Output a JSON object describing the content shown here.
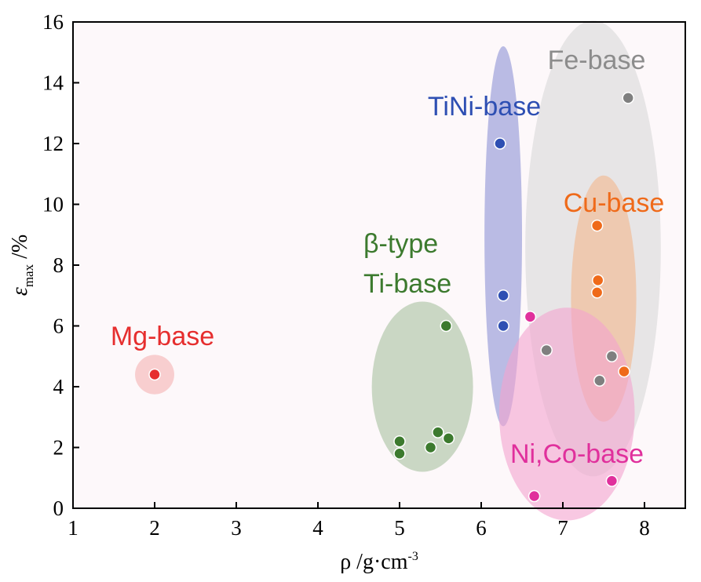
{
  "chart_data": {
    "type": "scatter",
    "xlim": [
      1,
      8.5
    ],
    "ylim": [
      0,
      16
    ],
    "x_ticks": [
      1,
      2,
      3,
      4,
      5,
      6,
      7,
      8
    ],
    "y_ticks": [
      0,
      2,
      4,
      6,
      8,
      10,
      12,
      14,
      16
    ],
    "xlabel": {
      "main": "ρ /g·cm",
      "sup": "-3"
    },
    "ylabel": {
      "main": "ε",
      "sub": "max",
      "unit": " /%"
    },
    "grid": false,
    "plot_background": "#fdf8fa",
    "groups": [
      {
        "name": "Fe-base",
        "color": "#7f7f7f",
        "label_color": "#8c8c8c",
        "region_color": "#d9d9d9",
        "region": {
          "cx": 7.37,
          "cy": 8.55,
          "rx": 0.83,
          "ry": 7.5
        },
        "points": [
          [
            7.8,
            13.5
          ],
          [
            6.8,
            5.2
          ],
          [
            7.6,
            5.0
          ],
          [
            7.45,
            4.2
          ]
        ]
      },
      {
        "name": "TiNi-base",
        "color": "#2e4fb3",
        "label_color": "#2e4fb3",
        "region_color": "#8e93d6",
        "region": {
          "cx": 6.27,
          "cy": 8.95,
          "rx": 0.23,
          "ry": 6.25
        },
        "points": [
          [
            6.23,
            12.0
          ],
          [
            6.27,
            7.0
          ],
          [
            6.27,
            6.0
          ]
        ]
      },
      {
        "name": "Cu-base",
        "color": "#ef6a1a",
        "label_color": "#ef6a1a",
        "region_color": "#f3b68c",
        "region": {
          "cx": 7.5,
          "cy": 6.9,
          "rx": 0.4,
          "ry": 4.05
        },
        "points": [
          [
            7.42,
            9.3
          ],
          [
            7.43,
            7.5
          ],
          [
            7.42,
            7.1
          ],
          [
            7.75,
            4.5
          ]
        ]
      },
      {
        "name": "β-type Ti-base",
        "label_lines": [
          "β-type",
          "Ti-base"
        ],
        "color": "#3c7a2e",
        "label_color": "#3c7a2e",
        "region_color": "#a9c2a0",
        "region": {
          "cx": 5.28,
          "cy": 4.0,
          "rx": 0.62,
          "ry": 2.8
        },
        "points": [
          [
            5.57,
            6.0
          ],
          [
            5.0,
            2.2
          ],
          [
            5.0,
            1.8
          ],
          [
            5.47,
            2.5
          ],
          [
            5.6,
            2.3
          ],
          [
            5.38,
            2.0
          ]
        ]
      },
      {
        "name": "Ni,Co-base",
        "color": "#e0309c",
        "label_color": "#e0309c",
        "region_color": "#f3a3cf",
        "region": {
          "cx": 7.05,
          "cy": 3.1,
          "rx": 0.83,
          "ry": 3.5
        },
        "points": [
          [
            6.6,
            6.3
          ],
          [
            6.65,
            0.4
          ],
          [
            7.6,
            0.9
          ]
        ]
      },
      {
        "name": "Mg-base",
        "color": "#e62e2e",
        "label_color": "#e62e2e",
        "region_color": "#f5b3b3",
        "region": {
          "cx": 2.0,
          "cy": 4.4,
          "rx": 0.24,
          "ry": 0.65
        },
        "points": [
          [
            2.0,
            4.4
          ]
        ]
      }
    ]
  }
}
